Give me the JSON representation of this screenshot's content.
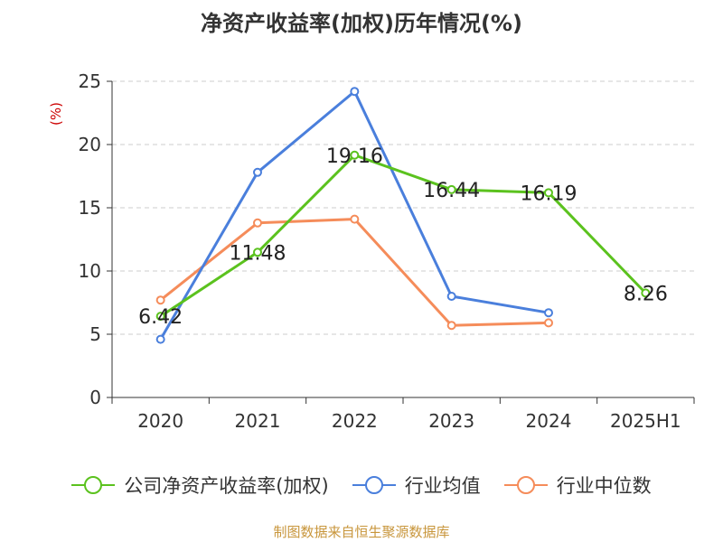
{
  "chart_data": {
    "type": "line",
    "title": "净资产收益率(加权)历年情况(%)",
    "ylabel": "(%)",
    "xlabel": "",
    "categories": [
      "2020",
      "2021",
      "2022",
      "2023",
      "2024",
      "2025H1"
    ],
    "ylim": [
      0,
      25
    ],
    "yticks": [
      0,
      5,
      10,
      15,
      20,
      25
    ],
    "grid": true,
    "legend_position": "bottom",
    "series": [
      {
        "name": "公司净资产收益率(加权)",
        "color": "#5bc21e",
        "values": [
          6.42,
          11.48,
          19.16,
          16.44,
          16.19,
          8.26
        ],
        "data_labels": [
          "6.42",
          "11.48",
          "19.16",
          "16.44",
          "16.19",
          "8.26"
        ]
      },
      {
        "name": "行业均值",
        "color": "#4a7fdc",
        "values": [
          4.6,
          17.8,
          24.2,
          8.0,
          6.7,
          null
        ]
      },
      {
        "name": "行业中位数",
        "color": "#f58c5a",
        "values": [
          7.7,
          13.8,
          14.1,
          5.7,
          5.9,
          null
        ]
      }
    ]
  },
  "footer": {
    "source": "制图数据来自恒生聚源数据库"
  },
  "colors": {
    "axis": "#333333",
    "grid": "#cccccc",
    "ylabel": "#cc0000",
    "source": "#c8963c"
  }
}
